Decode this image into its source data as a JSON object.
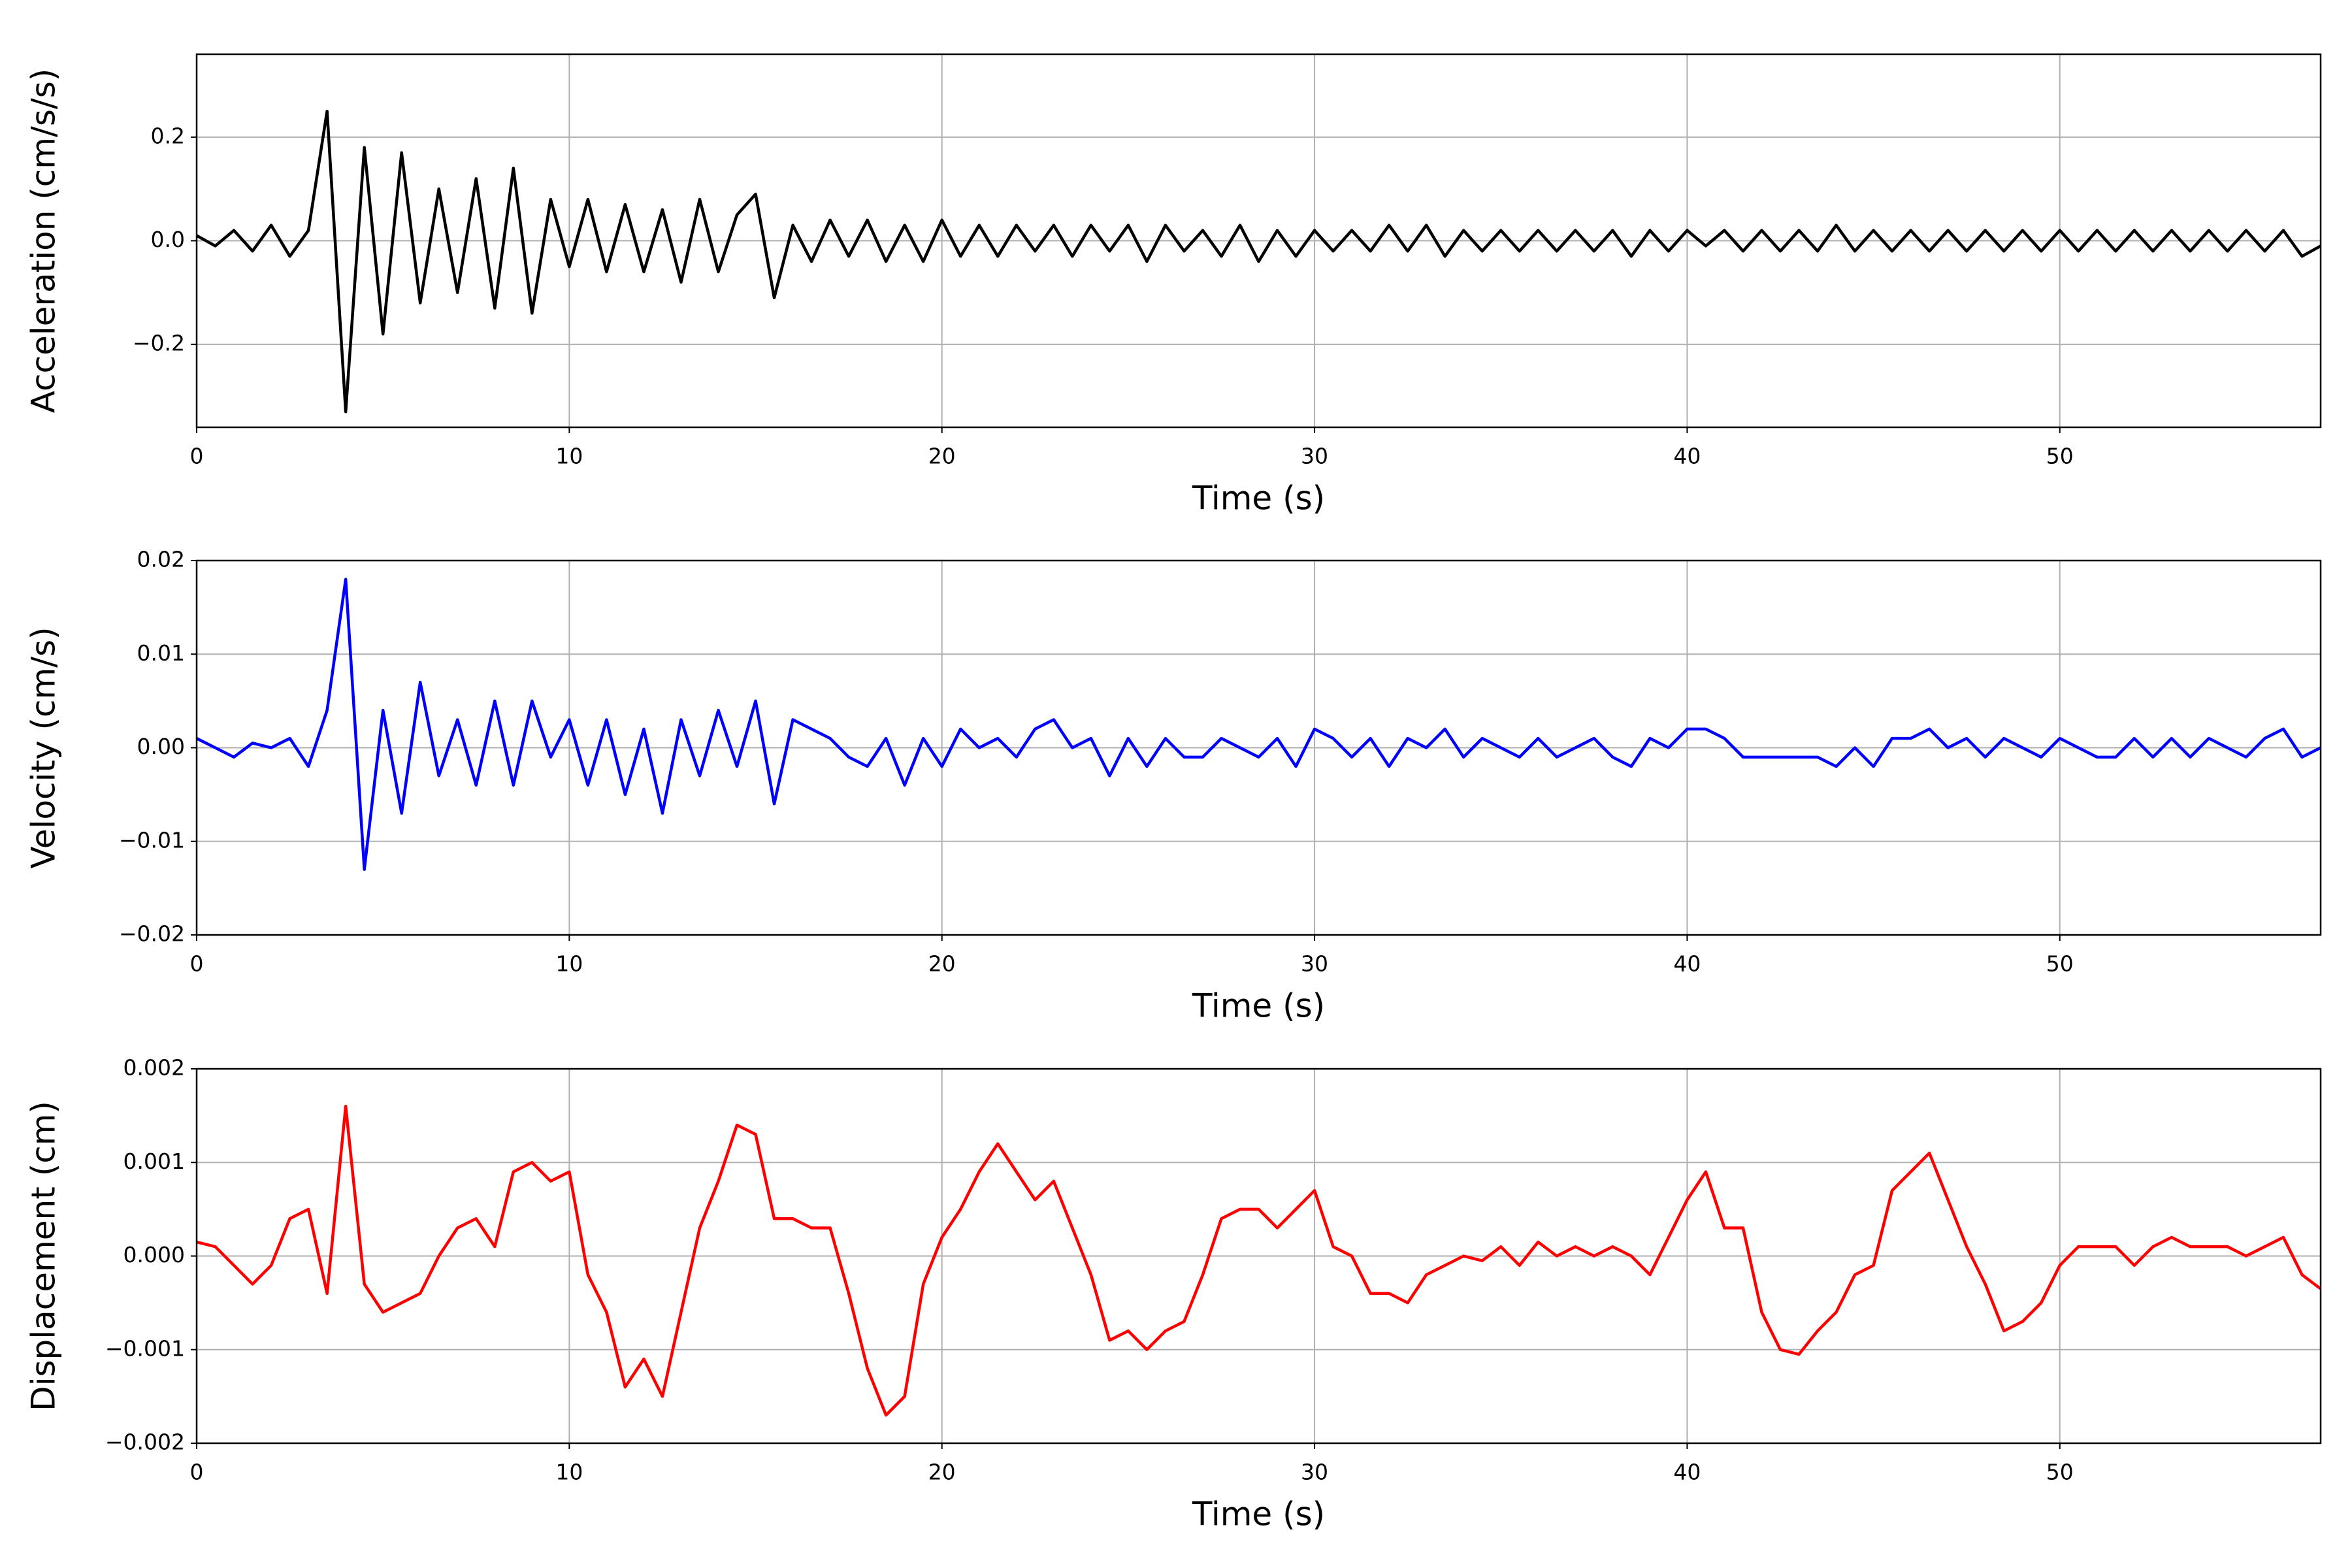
{
  "chart_data": [
    {
      "type": "line",
      "x_label": "Time (s)",
      "y_label": "Acceleration (cm/s/s)",
      "color": "#000000",
      "grid": true,
      "xlim": [
        0,
        57
      ],
      "xticks": [
        0,
        10,
        20,
        30,
        40,
        50
      ],
      "ylim": [
        -0.36,
        0.36
      ],
      "yticks": [
        {
          "value": -0.2,
          "label": "−0.2"
        },
        {
          "value": 0,
          "label": "0.0"
        },
        0.2
      ],
      "x": [
        0,
        0.5,
        1,
        1.5,
        2,
        2.5,
        3,
        3.5,
        4,
        4.5,
        5,
        5.5,
        6,
        6.5,
        7,
        7.5,
        8,
        8.5,
        9,
        9.5,
        10,
        10.5,
        11,
        11.5,
        12,
        12.5,
        13,
        13.5,
        14,
        14.5,
        15,
        15.5,
        16,
        16.5,
        17,
        17.5,
        18,
        18.5,
        19,
        19.5,
        20,
        20.5,
        21,
        21.5,
        22,
        22.5,
        23,
        23.5,
        24,
        24.5,
        25,
        25.5,
        26,
        26.5,
        27,
        27.5,
        28,
        28.5,
        29,
        29.5,
        30,
        30.5,
        31,
        31.5,
        32,
        32.5,
        33,
        33.5,
        34,
        34.5,
        35,
        35.5,
        36,
        36.5,
        37,
        37.5,
        38,
        38.5,
        39,
        39.5,
        40,
        40.5,
        41,
        41.5,
        42,
        42.5,
        43,
        43.5,
        44,
        44.5,
        45,
        45.5,
        46,
        46.5,
        47,
        47.5,
        48,
        48.5,
        49,
        49.5,
        50,
        50.5,
        51,
        51.5,
        52,
        52.5,
        53,
        53.5,
        54,
        54.5,
        55,
        55.5,
        56,
        56.5,
        57
      ],
      "values": [
        0.01,
        -0.01,
        0.02,
        -0.02,
        0.03,
        -0.03,
        0.02,
        0.25,
        -0.33,
        0.18,
        -0.18,
        0.17,
        -0.12,
        0.1,
        -0.1,
        0.12,
        -0.13,
        0.14,
        -0.14,
        0.08,
        -0.05,
        0.08,
        -0.06,
        0.07,
        -0.06,
        0.06,
        -0.08,
        0.08,
        -0.06,
        0.05,
        0.09,
        -0.11,
        0.03,
        -0.04,
        0.04,
        -0.03,
        0.04,
        -0.04,
        0.03,
        -0.04,
        0.04,
        -0.03,
        0.03,
        -0.03,
        0.03,
        -0.02,
        0.03,
        -0.03,
        0.03,
        -0.02,
        0.03,
        -0.04,
        0.03,
        -0.02,
        0.02,
        -0.03,
        0.03,
        -0.04,
        0.02,
        -0.03,
        0.02,
        -0.02,
        0.02,
        -0.02,
        0.03,
        -0.02,
        0.03,
        -0.03,
        0.02,
        -0.02,
        0.02,
        -0.02,
        0.02,
        -0.02,
        0.02,
        -0.02,
        0.02,
        -0.03,
        0.02,
        -0.02,
        0.02,
        -0.01,
        0.02,
        -0.02,
        0.02,
        -0.02,
        0.02,
        -0.02,
        0.03,
        -0.02,
        0.02,
        -0.02,
        0.02,
        -0.02,
        0.02,
        -0.02,
        0.02,
        -0.02,
        0.02,
        -0.02,
        0.02,
        -0.02,
        0.02,
        -0.02,
        0.02,
        -0.02,
        0.02,
        -0.02,
        0.02,
        -0.02,
        0.02,
        -0.02,
        0.02,
        -0.03,
        -0.01
      ]
    },
    {
      "type": "line",
      "x_label": "Time (s)",
      "y_label": "Velocity (cm/s)",
      "color": "#0000ff",
      "grid": true,
      "xlim": [
        0,
        57
      ],
      "xticks": [
        0,
        10,
        20,
        30,
        40,
        50
      ],
      "ylim": [
        -0.02,
        0.02
      ],
      "yticks": [
        {
          "value": -0.02,
          "label": "−0.02"
        },
        {
          "value": -0.01,
          "label": "−0.01"
        },
        {
          "value": 0,
          "label": "0.00"
        },
        0.01,
        0.02
      ],
      "x": [
        0,
        0.5,
        1,
        1.5,
        2,
        2.5,
        3,
        3.5,
        4,
        4.5,
        5,
        5.5,
        6,
        6.5,
        7,
        7.5,
        8,
        8.5,
        9,
        9.5,
        10,
        10.5,
        11,
        11.5,
        12,
        12.5,
        13,
        13.5,
        14,
        14.5,
        15,
        15.5,
        16,
        16.5,
        17,
        17.5,
        18,
        18.5,
        19,
        19.5,
        20,
        20.5,
        21,
        21.5,
        22,
        22.5,
        23,
        23.5,
        24,
        24.5,
        25,
        25.5,
        26,
        26.5,
        27,
        27.5,
        28,
        28.5,
        29,
        29.5,
        30,
        30.5,
        31,
        31.5,
        32,
        32.5,
        33,
        33.5,
        34,
        34.5,
        35,
        35.5,
        36,
        36.5,
        37,
        37.5,
        38,
        38.5,
        39,
        39.5,
        40,
        40.5,
        41,
        41.5,
        42,
        42.5,
        43,
        43.5,
        44,
        44.5,
        45,
        45.5,
        46,
        46.5,
        47,
        47.5,
        48,
        48.5,
        49,
        49.5,
        50,
        50.5,
        51,
        51.5,
        52,
        52.5,
        53,
        53.5,
        54,
        54.5,
        55,
        55.5,
        56,
        56.5,
        57
      ],
      "values": [
        0.001,
        0,
        -0.001,
        0.0005,
        0,
        0.001,
        -0.002,
        0.004,
        0.018,
        -0.013,
        0.004,
        -0.007,
        0.007,
        -0.003,
        0.003,
        -0.004,
        0.005,
        -0.004,
        0.005,
        -0.001,
        0.003,
        -0.004,
        0.003,
        -0.005,
        0.002,
        -0.007,
        0.003,
        -0.003,
        0.004,
        -0.002,
        0.005,
        -0.006,
        0.003,
        0.002,
        0.001,
        -0.001,
        -0.002,
        0.001,
        -0.004,
        0.001,
        -0.002,
        0.002,
        0,
        0.001,
        -0.001,
        0.002,
        0.003,
        0,
        0.001,
        -0.003,
        0.001,
        -0.002,
        0.001,
        -0.001,
        -0.001,
        0.001,
        0,
        -0.001,
        0.001,
        -0.002,
        0.002,
        0.001,
        -0.001,
        0.001,
        -0.002,
        0.001,
        0,
        0.002,
        -0.001,
        0.001,
        0,
        -0.001,
        0.001,
        -0.001,
        0,
        0.001,
        -0.001,
        -0.002,
        0.001,
        0,
        0.002,
        0.002,
        0.001,
        -0.001,
        -0.001,
        -0.001,
        -0.001,
        -0.001,
        -0.002,
        0,
        -0.002,
        0.001,
        0.001,
        0.002,
        0,
        0.001,
        -0.001,
        0.001,
        0,
        -0.001,
        0.001,
        0,
        -0.001,
        -0.001,
        0.001,
        -0.001,
        0.001,
        -0.001,
        0.001,
        0,
        -0.001,
        0.001,
        0.002,
        -0.001,
        0
      ]
    },
    {
      "type": "line",
      "x_label": "Time (s)",
      "y_label": "Displacement (cm)",
      "color": "#ff0000",
      "grid": true,
      "xlim": [
        0,
        57
      ],
      "xticks": [
        0,
        10,
        20,
        30,
        40,
        50
      ],
      "ylim": [
        -0.002,
        0.002
      ],
      "yticks": [
        {
          "value": -0.002,
          "label": "−0.002"
        },
        {
          "value": -0.001,
          "label": "−0.001"
        },
        {
          "value": 0,
          "label": "0.000"
        },
        0.001,
        0.002
      ],
      "x": [
        0,
        0.5,
        1,
        1.5,
        2,
        2.5,
        3,
        3.5,
        4,
        4.5,
        5,
        5.5,
        6,
        6.5,
        7,
        7.5,
        8,
        8.5,
        9,
        9.5,
        10,
        10.5,
        11,
        11.5,
        12,
        12.5,
        13,
        13.5,
        14,
        14.5,
        15,
        15.5,
        16,
        16.5,
        17,
        17.5,
        18,
        18.5,
        19,
        19.5,
        20,
        20.5,
        21,
        21.5,
        22,
        22.5,
        23,
        23.5,
        24,
        24.5,
        25,
        25.5,
        26,
        26.5,
        27,
        27.5,
        28,
        28.5,
        29,
        29.5,
        30,
        30.5,
        31,
        31.5,
        32,
        32.5,
        33,
        33.5,
        34,
        34.5,
        35,
        35.5,
        36,
        36.5,
        37,
        37.5,
        38,
        38.5,
        39,
        39.5,
        40,
        40.5,
        41,
        41.5,
        42,
        42.5,
        43,
        43.5,
        44,
        44.5,
        45,
        45.5,
        46,
        46.5,
        47,
        47.5,
        48,
        48.5,
        49,
        49.5,
        50,
        50.5,
        51,
        51.5,
        52,
        52.5,
        53,
        53.5,
        54,
        54.5,
        55,
        55.5,
        56,
        56.5,
        57
      ],
      "values": [
        0.00015,
        0.0001,
        -0.0001,
        -0.0003,
        -0.0001,
        0.0004,
        0.0005,
        -0.0004,
        0.0016,
        -0.0003,
        -0.0006,
        -0.0005,
        -0.0004,
        0,
        0.0003,
        0.0004,
        0.0001,
        0.0009,
        0.001,
        0.0008,
        0.0009,
        -0.0002,
        -0.0006,
        -0.0014,
        -0.0011,
        -0.0015,
        -0.0006,
        0.0003,
        0.0008,
        0.0014,
        0.0013,
        0.0004,
        0.0004,
        0.0003,
        0.0003,
        -0.0004,
        -0.0012,
        -0.0017,
        -0.0015,
        -0.0003,
        0.0002,
        0.0005,
        0.0009,
        0.0012,
        0.0009,
        0.0006,
        0.0008,
        0.0003,
        -0.0002,
        -0.0009,
        -0.0008,
        -0.001,
        -0.0008,
        -0.0007,
        -0.0002,
        0.0004,
        0.0005,
        0.0005,
        0.0003,
        0.0005,
        0.0007,
        0.0001,
        0,
        -0.0004,
        -0.0004,
        -0.0005,
        -0.0002,
        -0.0001,
        0,
        -5e-05,
        0.0001,
        -0.0001,
        0.00015,
        0,
        0.0001,
        0,
        0.0001,
        0,
        -0.0002,
        0.0002,
        0.0006,
        0.0009,
        0.0003,
        0.0003,
        -0.0006,
        -0.001,
        -0.00105,
        -0.0008,
        -0.0006,
        -0.0002,
        -0.0001,
        0.0007,
        0.0009,
        0.0011,
        0.0006,
        0.0001,
        -0.0003,
        -0.0008,
        -0.0007,
        -0.0005,
        -0.0001,
        0.0001,
        0.0001,
        0.0001,
        -0.0001,
        0.0001,
        0.0002,
        0.0001,
        0.0001,
        0.0001,
        0,
        0.0001,
        0.0002,
        -0.0002,
        -0.00035
      ]
    }
  ]
}
